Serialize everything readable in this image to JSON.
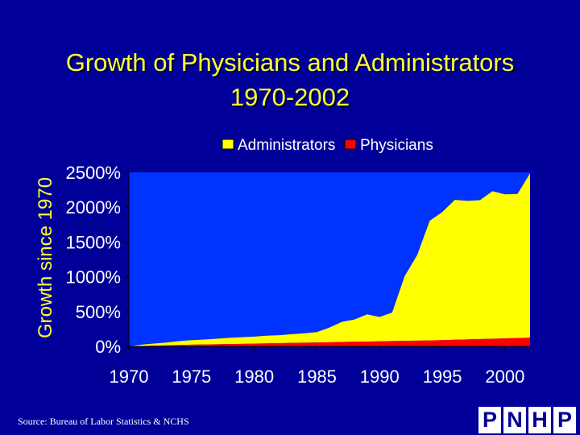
{
  "title_line1": "Growth of Physicians and Administrators",
  "title_line2": "1970-2002",
  "source": "Source: Bureau of Labor Statistics & NCHS",
  "logo_letters": [
    "P",
    "N",
    "H",
    "P"
  ],
  "colors": {
    "background": "#000099",
    "plot_area": "#0033ff",
    "title": "#ffff33",
    "axis_text": "#ffffff",
    "administrators": "#ffff00",
    "physicians": "#ff0000"
  },
  "chart_data": {
    "type": "area",
    "stacked": true,
    "title": "Growth of Physicians and Administrators 1970-2002",
    "ylabel": "Growth since 1970",
    "xlabel": "",
    "ylim": [
      0,
      2500
    ],
    "y_ticks": [
      0,
      500,
      1000,
      1500,
      2000,
      2500
    ],
    "y_tick_labels": [
      "0%",
      "500%",
      "1000%",
      "1500%",
      "2000%",
      "2500%"
    ],
    "x_ticks": [
      1970,
      1975,
      1980,
      1985,
      1990,
      1995,
      2000
    ],
    "x_tick_labels": [
      "1970",
      "1975",
      "1980",
      "1985",
      "1990",
      "1995",
      "2000"
    ],
    "legend_position": "top",
    "grid": false,
    "x": [
      1970,
      1971,
      1972,
      1973,
      1974,
      1975,
      1976,
      1977,
      1978,
      1979,
      1980,
      1981,
      1982,
      1983,
      1984,
      1985,
      1986,
      1987,
      1988,
      1989,
      1990,
      1991,
      1992,
      1993,
      1994,
      1995,
      1996,
      1997,
      1998,
      1999,
      2000,
      2001,
      2002
    ],
    "series": [
      {
        "name": "Physicians",
        "values": [
          0,
          5,
          10,
          15,
          20,
          25,
          28,
          30,
          33,
          36,
          40,
          43,
          46,
          50,
          53,
          56,
          60,
          63,
          66,
          70,
          73,
          76,
          80,
          83,
          86,
          90,
          95,
          100,
          105,
          110,
          115,
          120,
          125
        ]
      },
      {
        "name": "Administrators",
        "values": [
          0,
          20,
          30,
          40,
          55,
          65,
          70,
          80,
          90,
          95,
          100,
          110,
          115,
          125,
          135,
          150,
          210,
          290,
          320,
          390,
          350,
          410,
          930,
          1230,
          1720,
          1840,
          2010,
          1990,
          1995,
          2120,
          2070,
          2070,
          2360
        ]
      }
    ]
  }
}
